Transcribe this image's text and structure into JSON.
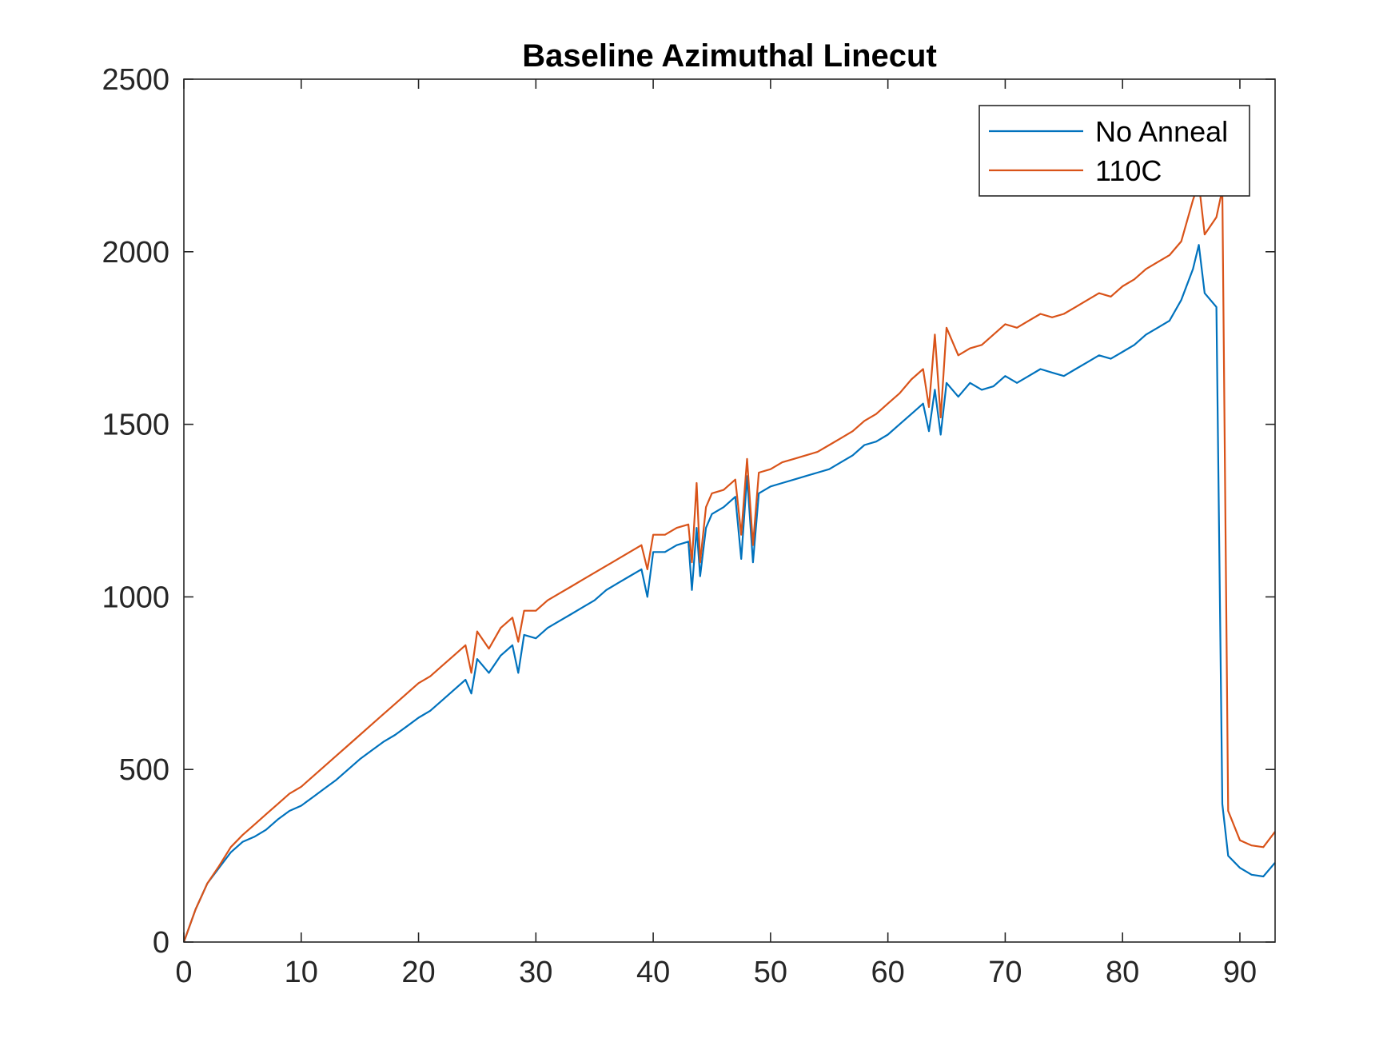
{
  "chart_data": {
    "type": "line",
    "title": "Baseline Azimuthal Linecut",
    "xlabel": "",
    "ylabel": "",
    "xlim": [
      0,
      93
    ],
    "ylim": [
      0,
      2500
    ],
    "xticks": [
      0,
      10,
      20,
      30,
      40,
      50,
      60,
      70,
      80,
      90
    ],
    "yticks": [
      0,
      500,
      1000,
      1500,
      2000,
      2500
    ],
    "grid": false,
    "legend_position": "top-right",
    "series": [
      {
        "name": "No Anneal",
        "color": "#0072BD",
        "x": [
          0,
          1,
          2,
          3,
          4,
          5,
          6,
          7,
          8,
          9,
          10,
          11,
          12,
          13,
          14,
          15,
          16,
          17,
          18,
          19,
          20,
          21,
          22,
          23,
          24,
          24.5,
          25,
          26,
          27,
          28,
          28.5,
          29,
          30,
          31,
          32,
          33,
          34,
          35,
          36,
          37,
          38,
          39,
          39.5,
          40,
          41,
          42,
          43,
          43.3,
          43.7,
          44,
          44.5,
          45,
          46,
          47,
          47.5,
          48,
          48.5,
          49,
          50,
          51,
          52,
          53,
          54,
          55,
          56,
          57,
          58,
          59,
          60,
          61,
          62,
          63,
          63.5,
          64,
          64.5,
          65,
          66,
          67,
          68,
          69,
          70,
          71,
          72,
          73,
          74,
          75,
          76,
          77,
          78,
          79,
          80,
          81,
          82,
          83,
          84,
          85,
          86,
          86.5,
          87,
          88,
          88.5,
          89,
          90,
          91,
          92,
          93
        ],
        "y": [
          0,
          95,
          170,
          215,
          260,
          290,
          305,
          325,
          355,
          380,
          395,
          420,
          445,
          470,
          500,
          530,
          555,
          580,
          600,
          625,
          650,
          670,
          700,
          730,
          760,
          720,
          820,
          780,
          830,
          860,
          780,
          890,
          880,
          910,
          930,
          950,
          970,
          990,
          1020,
          1040,
          1060,
          1080,
          1000,
          1130,
          1130,
          1150,
          1160,
          1020,
          1200,
          1060,
          1200,
          1240,
          1260,
          1290,
          1110,
          1350,
          1100,
          1300,
          1320,
          1330,
          1340,
          1350,
          1360,
          1370,
          1390,
          1410,
          1440,
          1450,
          1470,
          1500,
          1530,
          1560,
          1480,
          1600,
          1470,
          1620,
          1580,
          1620,
          1600,
          1610,
          1640,
          1620,
          1640,
          1660,
          1650,
          1640,
          1660,
          1680,
          1700,
          1690,
          1710,
          1730,
          1760,
          1780,
          1800,
          1860,
          1950,
          2020,
          1880,
          1840,
          400,
          250,
          215,
          195,
          190,
          230
        ]
      },
      {
        "name": "110C",
        "color": "#D95319",
        "x": [
          0,
          1,
          2,
          3,
          4,
          5,
          6,
          7,
          8,
          9,
          10,
          11,
          12,
          13,
          14,
          15,
          16,
          17,
          18,
          19,
          20,
          21,
          22,
          23,
          24,
          24.5,
          25,
          26,
          27,
          28,
          28.5,
          29,
          30,
          31,
          32,
          33,
          34,
          35,
          36,
          37,
          38,
          39,
          39.5,
          40,
          41,
          42,
          43,
          43.3,
          43.7,
          44,
          44.5,
          45,
          46,
          47,
          47.5,
          48,
          48.5,
          49,
          50,
          51,
          52,
          53,
          54,
          55,
          56,
          57,
          58,
          59,
          60,
          61,
          62,
          63,
          63.5,
          64,
          64.5,
          65,
          66,
          67,
          68,
          69,
          70,
          71,
          72,
          73,
          74,
          75,
          76,
          77,
          78,
          79,
          80,
          81,
          82,
          83,
          84,
          85,
          86,
          86.5,
          87,
          88,
          88.5,
          89,
          90,
          91,
          92,
          93
        ],
        "y": [
          0,
          95,
          170,
          220,
          275,
          310,
          340,
          370,
          400,
          430,
          450,
          480,
          510,
          540,
          570,
          600,
          630,
          660,
          690,
          720,
          750,
          770,
          800,
          830,
          860,
          780,
          900,
          850,
          910,
          940,
          870,
          960,
          960,
          990,
          1010,
          1030,
          1050,
          1070,
          1090,
          1110,
          1130,
          1150,
          1080,
          1180,
          1180,
          1200,
          1210,
          1100,
          1330,
          1100,
          1260,
          1300,
          1310,
          1340,
          1180,
          1400,
          1150,
          1360,
          1370,
          1390,
          1400,
          1410,
          1420,
          1440,
          1460,
          1480,
          1510,
          1530,
          1560,
          1590,
          1630,
          1660,
          1550,
          1760,
          1520,
          1780,
          1700,
          1720,
          1730,
          1760,
          1790,
          1780,
          1800,
          1820,
          1810,
          1820,
          1840,
          1860,
          1880,
          1870,
          1900,
          1920,
          1950,
          1970,
          1990,
          2030,
          2150,
          2200,
          2050,
          2100,
          2180,
          380,
          295,
          280,
          275,
          320
        ]
      }
    ]
  }
}
